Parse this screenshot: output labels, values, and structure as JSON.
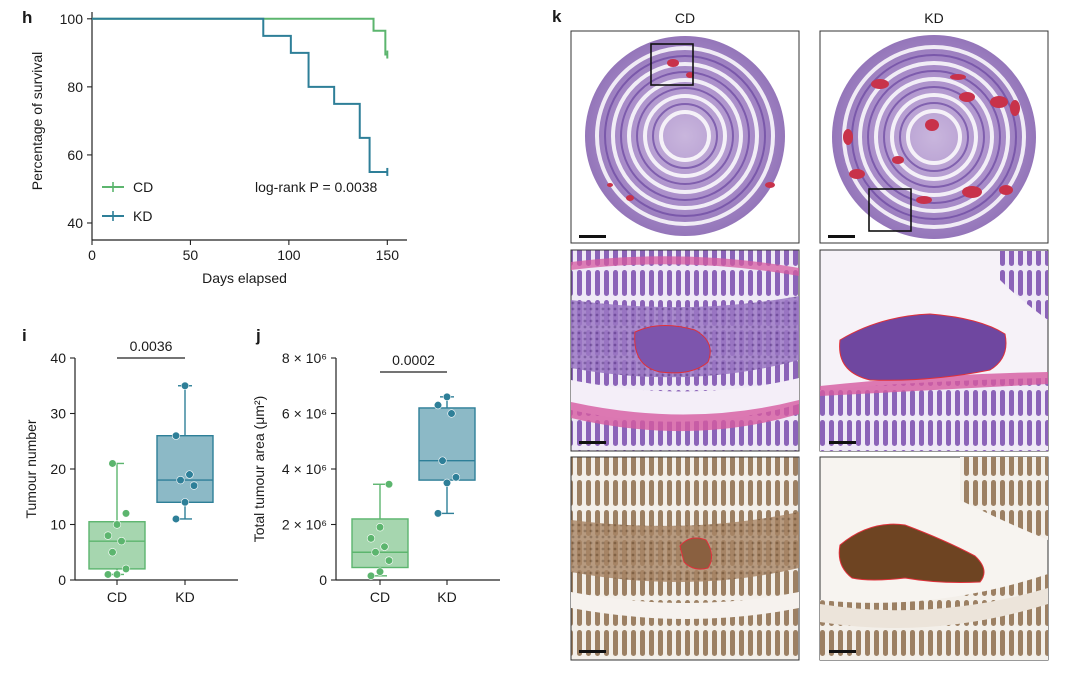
{
  "panel_h": {
    "label": "h",
    "annotation": "log-rank P = 0.0038",
    "legend": [
      {
        "name": "CD",
        "color": "#5cb56e"
      },
      {
        "name": "KD",
        "color": "#2e7f98"
      }
    ]
  },
  "panel_i": {
    "label": "i",
    "pvalue": "0.0036"
  },
  "panel_j": {
    "label": "j",
    "pvalue": "0.0002"
  },
  "panel_k": {
    "label": "k",
    "col_labels": [
      "CD",
      "KD"
    ],
    "rows": [
      "H&E overview",
      "H&E magnified",
      "IHC magnified"
    ]
  },
  "chart_data": [
    {
      "type": "line",
      "xlabel": "Days elapsed",
      "ylabel": "Percentage of survival",
      "xlim": [
        0,
        160
      ],
      "ylim": [
        35,
        102
      ],
      "xticks": [
        0,
        50,
        100,
        150
      ],
      "yticks": [
        40,
        60,
        80,
        100
      ],
      "grid": false,
      "legend_position": "bottom-left",
      "series": [
        {
          "name": "CD",
          "color": "#5cb56e",
          "step": true,
          "x": [
            0,
            143,
            143,
            149,
            149,
            150
          ],
          "y": [
            100,
            100,
            96.5,
            96.5,
            89.5,
            89.5
          ]
        },
        {
          "name": "KD",
          "color": "#2e7f98",
          "step": true,
          "x": [
            0,
            87,
            87,
            101,
            101,
            110,
            110,
            123,
            123,
            136,
            136,
            141,
            141,
            150
          ],
          "y": [
            100,
            100,
            95,
            95,
            90,
            90,
            80,
            80,
            75,
            75,
            65,
            65,
            55,
            55
          ]
        }
      ]
    },
    {
      "type": "box",
      "ylabel": "Tumour number",
      "categories": [
        "CD",
        "KD"
      ],
      "ylim": [
        0,
        40
      ],
      "yticks": [
        0,
        10,
        20,
        30,
        40
      ],
      "colors": [
        "#5cb56e",
        "#2e7f98"
      ],
      "boxes": [
        {
          "name": "CD",
          "min": 1,
          "q1": 2,
          "median": 7,
          "q3": 10.5,
          "max": 21,
          "points": [
            1,
            1,
            2,
            5,
            7,
            8,
            10,
            12,
            21
          ]
        },
        {
          "name": "KD",
          "min": 11,
          "q1": 14,
          "median": 18,
          "q3": 26,
          "max": 35,
          "points": [
            11,
            14,
            17,
            18,
            19,
            26,
            35
          ]
        }
      ],
      "comparison": {
        "groups": [
          "CD",
          "KD"
        ],
        "pvalue": "0.0036"
      }
    },
    {
      "type": "box",
      "ylabel": "Total tumour area (μm²)",
      "categories": [
        "CD",
        "KD"
      ],
      "ylim": [
        0,
        8000000
      ],
      "yticks": [
        0,
        2000000,
        4000000,
        6000000,
        8000000
      ],
      "ytick_labels": [
        "0",
        "2 × 10⁶",
        "4 × 10⁶",
        "6 × 10⁶",
        "8 × 10⁶"
      ],
      "colors": [
        "#5cb56e",
        "#2e7f98"
      ],
      "boxes": [
        {
          "name": "CD",
          "min": 150000,
          "q1": 450000,
          "median": 1000000,
          "q3": 2200000,
          "max": 3450000,
          "points": [
            150000,
            300000,
            700000,
            1000000,
            1200000,
            1500000,
            1900000,
            3450000
          ]
        },
        {
          "name": "KD",
          "min": 2400000,
          "q1": 3600000,
          "median": 4300000,
          "q3": 6200000,
          "max": 6600000,
          "points": [
            2400000,
            3500000,
            3700000,
            4300000,
            6000000,
            6300000,
            6600000
          ]
        }
      ],
      "comparison": {
        "groups": [
          "CD",
          "KD"
        ],
        "pvalue": "0.0002"
      }
    }
  ]
}
